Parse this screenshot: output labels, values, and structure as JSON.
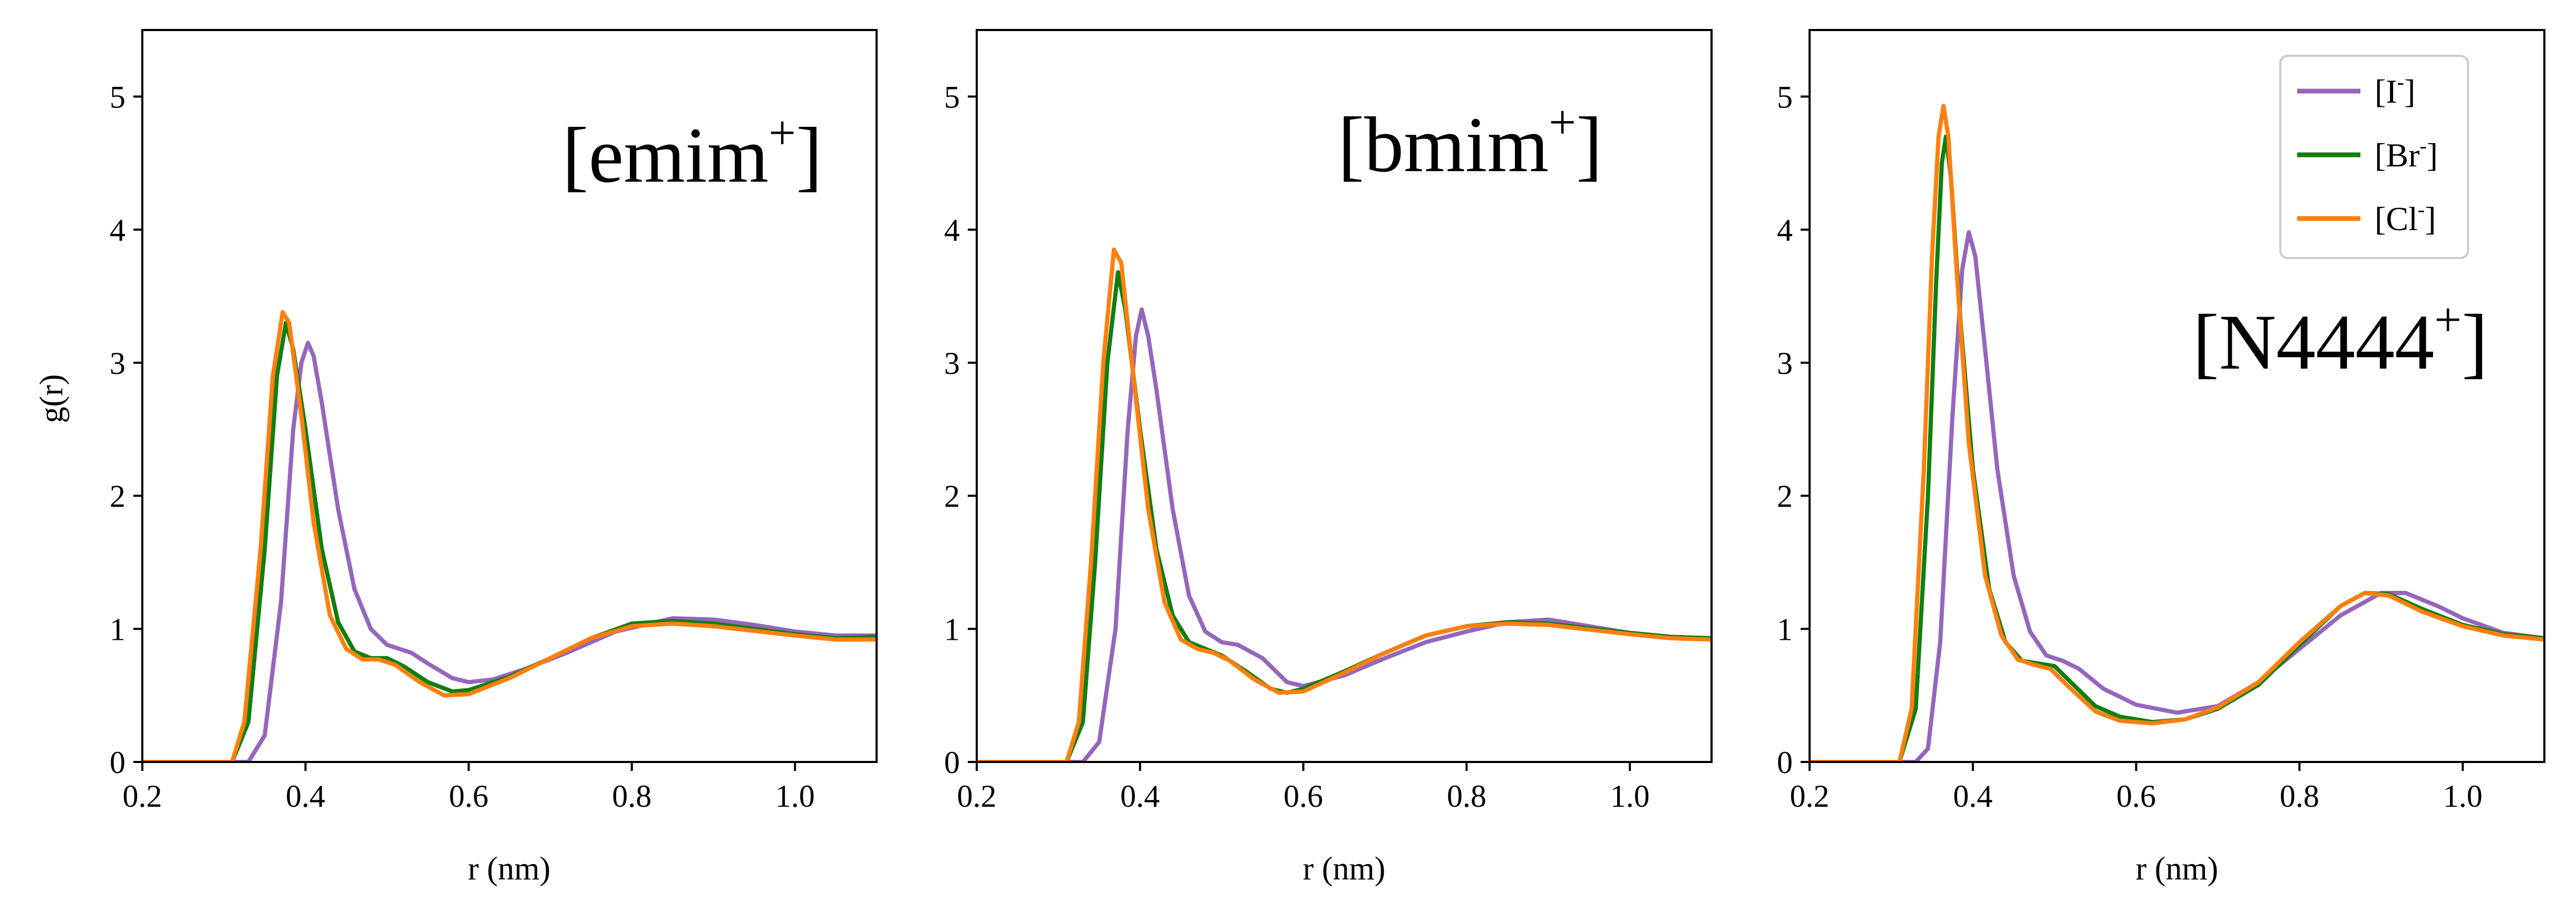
{
  "colors": {
    "I": "#9467bd",
    "Br": "#107f10",
    "Cl": "#ff7f0e"
  },
  "legend": {
    "placement": "upper-right of third panel",
    "entries": [
      {
        "key": "I",
        "label": "[I",
        "sup": "-",
        "close": "]"
      },
      {
        "key": "Br",
        "label": "[Br",
        "sup": "-",
        "close": "]"
      },
      {
        "key": "Cl",
        "label": "[Cl",
        "sup": "-",
        "close": "]"
      }
    ]
  },
  "chart_data": [
    {
      "type": "line",
      "panel_label": {
        "text": "[emim",
        "sup": "+",
        "close": "]"
      },
      "xlabel": "r (nm)",
      "ylabel": "g(r)",
      "xlim": [
        0.2,
        1.1
      ],
      "ylim": [
        0,
        5.5
      ],
      "xticks": [
        "0.2",
        "0.4",
        "0.6",
        "0.8",
        "1.0"
      ],
      "yticks": [
        "0",
        "1",
        "2",
        "3",
        "4",
        "5"
      ],
      "series": [
        {
          "name": "[I-]",
          "key": "I",
          "points": [
            [
              0.2,
              0
            ],
            [
              0.33,
              0
            ],
            [
              0.35,
              0.2
            ],
            [
              0.37,
              1.2
            ],
            [
              0.385,
              2.5
            ],
            [
              0.395,
              3.0
            ],
            [
              0.403,
              3.15
            ],
            [
              0.41,
              3.05
            ],
            [
              0.42,
              2.7
            ],
            [
              0.44,
              1.9
            ],
            [
              0.46,
              1.3
            ],
            [
              0.48,
              1.0
            ],
            [
              0.5,
              0.88
            ],
            [
              0.53,
              0.82
            ],
            [
              0.55,
              0.74
            ],
            [
              0.58,
              0.63
            ],
            [
              0.6,
              0.6
            ],
            [
              0.63,
              0.62
            ],
            [
              0.67,
              0.7
            ],
            [
              0.72,
              0.82
            ],
            [
              0.78,
              0.98
            ],
            [
              0.85,
              1.08
            ],
            [
              0.9,
              1.07
            ],
            [
              0.95,
              1.03
            ],
            [
              1.0,
              0.98
            ],
            [
              1.05,
              0.95
            ],
            [
              1.1,
              0.95
            ]
          ]
        },
        {
          "name": "[Br-]",
          "key": "Br",
          "points": [
            [
              0.2,
              0
            ],
            [
              0.31,
              0
            ],
            [
              0.33,
              0.3
            ],
            [
              0.35,
              1.6
            ],
            [
              0.365,
              2.9
            ],
            [
              0.376,
              3.3
            ],
            [
              0.385,
              3.1
            ],
            [
              0.4,
              2.5
            ],
            [
              0.42,
              1.6
            ],
            [
              0.44,
              1.05
            ],
            [
              0.46,
              0.83
            ],
            [
              0.48,
              0.78
            ],
            [
              0.5,
              0.78
            ],
            [
              0.52,
              0.72
            ],
            [
              0.55,
              0.6
            ],
            [
              0.58,
              0.53
            ],
            [
              0.6,
              0.54
            ],
            [
              0.65,
              0.64
            ],
            [
              0.7,
              0.78
            ],
            [
              0.75,
              0.93
            ],
            [
              0.8,
              1.04
            ],
            [
              0.85,
              1.06
            ],
            [
              0.9,
              1.04
            ],
            [
              1.0,
              0.96
            ],
            [
              1.05,
              0.93
            ],
            [
              1.1,
              0.94
            ]
          ]
        },
        {
          "name": "[Cl-]",
          "key": "Cl",
          "points": [
            [
              0.2,
              0
            ],
            [
              0.31,
              0
            ],
            [
              0.325,
              0.3
            ],
            [
              0.345,
              1.6
            ],
            [
              0.36,
              2.9
            ],
            [
              0.372,
              3.38
            ],
            [
              0.38,
              3.3
            ],
            [
              0.395,
              2.6
            ],
            [
              0.41,
              1.8
            ],
            [
              0.43,
              1.1
            ],
            [
              0.45,
              0.85
            ],
            [
              0.47,
              0.77
            ],
            [
              0.49,
              0.77
            ],
            [
              0.51,
              0.73
            ],
            [
              0.54,
              0.6
            ],
            [
              0.57,
              0.5
            ],
            [
              0.6,
              0.51
            ],
            [
              0.65,
              0.63
            ],
            [
              0.7,
              0.78
            ],
            [
              0.75,
              0.93
            ],
            [
              0.8,
              1.02
            ],
            [
              0.85,
              1.04
            ],
            [
              0.9,
              1.02
            ],
            [
              1.0,
              0.95
            ],
            [
              1.05,
              0.92
            ],
            [
              1.1,
              0.92
            ]
          ]
        }
      ]
    },
    {
      "type": "line",
      "panel_label": {
        "text": "[bmim",
        "sup": "+",
        "close": "]"
      },
      "xlabel": "r (nm)",
      "ylabel": "",
      "xlim": [
        0.2,
        1.1
      ],
      "ylim": [
        0,
        5.5
      ],
      "xticks": [
        "0.2",
        "0.4",
        "0.6",
        "0.8",
        "1.0"
      ],
      "yticks": [
        "0",
        "1",
        "2",
        "3",
        "4",
        "5"
      ],
      "series": [
        {
          "name": "[I-]",
          "key": "I",
          "points": [
            [
              0.2,
              0
            ],
            [
              0.33,
              0
            ],
            [
              0.35,
              0.15
            ],
            [
              0.37,
              1.0
            ],
            [
              0.385,
              2.5
            ],
            [
              0.395,
              3.2
            ],
            [
              0.402,
              3.4
            ],
            [
              0.41,
              3.2
            ],
            [
              0.42,
              2.8
            ],
            [
              0.44,
              1.9
            ],
            [
              0.46,
              1.25
            ],
            [
              0.48,
              0.98
            ],
            [
              0.5,
              0.9
            ],
            [
              0.52,
              0.88
            ],
            [
              0.55,
              0.78
            ],
            [
              0.58,
              0.6
            ],
            [
              0.6,
              0.57
            ],
            [
              0.65,
              0.65
            ],
            [
              0.7,
              0.78
            ],
            [
              0.75,
              0.9
            ],
            [
              0.8,
              0.98
            ],
            [
              0.85,
              1.05
            ],
            [
              0.9,
              1.07
            ],
            [
              0.95,
              1.02
            ],
            [
              1.0,
              0.97
            ],
            [
              1.05,
              0.94
            ],
            [
              1.1,
              0.93
            ]
          ]
        },
        {
          "name": "[Br-]",
          "key": "Br",
          "points": [
            [
              0.2,
              0
            ],
            [
              0.31,
              0
            ],
            [
              0.33,
              0.3
            ],
            [
              0.345,
              1.5
            ],
            [
              0.36,
              3.0
            ],
            [
              0.373,
              3.68
            ],
            [
              0.382,
              3.4
            ],
            [
              0.4,
              2.5
            ],
            [
              0.42,
              1.6
            ],
            [
              0.44,
              1.1
            ],
            [
              0.46,
              0.9
            ],
            [
              0.48,
              0.85
            ],
            [
              0.5,
              0.8
            ],
            [
              0.53,
              0.68
            ],
            [
              0.56,
              0.55
            ],
            [
              0.58,
              0.52
            ],
            [
              0.6,
              0.55
            ],
            [
              0.65,
              0.68
            ],
            [
              0.7,
              0.82
            ],
            [
              0.75,
              0.95
            ],
            [
              0.8,
              1.02
            ],
            [
              0.85,
              1.05
            ],
            [
              0.9,
              1.04
            ],
            [
              1.0,
              0.97
            ],
            [
              1.05,
              0.94
            ],
            [
              1.1,
              0.93
            ]
          ]
        },
        {
          "name": "[Cl-]",
          "key": "Cl",
          "points": [
            [
              0.2,
              0
            ],
            [
              0.31,
              0
            ],
            [
              0.325,
              0.3
            ],
            [
              0.34,
              1.5
            ],
            [
              0.355,
              3.0
            ],
            [
              0.368,
              3.85
            ],
            [
              0.377,
              3.75
            ],
            [
              0.39,
              3.0
            ],
            [
              0.41,
              1.9
            ],
            [
              0.43,
              1.2
            ],
            [
              0.45,
              0.92
            ],
            [
              0.47,
              0.85
            ],
            [
              0.49,
              0.82
            ],
            [
              0.51,
              0.76
            ],
            [
              0.54,
              0.62
            ],
            [
              0.57,
              0.52
            ],
            [
              0.6,
              0.53
            ],
            [
              0.65,
              0.67
            ],
            [
              0.7,
              0.82
            ],
            [
              0.75,
              0.95
            ],
            [
              0.8,
              1.02
            ],
            [
              0.85,
              1.04
            ],
            [
              0.9,
              1.03
            ],
            [
              1.0,
              0.96
            ],
            [
              1.05,
              0.93
            ],
            [
              1.1,
              0.92
            ]
          ]
        }
      ]
    },
    {
      "type": "line",
      "panel_label": {
        "text": "[N4444",
        "sup": "+",
        "close": "]"
      },
      "xlabel": "r (nm)",
      "ylabel": "",
      "xlim": [
        0.2,
        1.1
      ],
      "ylim": [
        0,
        5.5
      ],
      "xticks": [
        "0.2",
        "0.4",
        "0.6",
        "0.8",
        "1.0"
      ],
      "yticks": [
        "0",
        "1",
        "2",
        "3",
        "4",
        "5"
      ],
      "series": [
        {
          "name": "[I-]",
          "key": "I",
          "points": [
            [
              0.2,
              0
            ],
            [
              0.33,
              0
            ],
            [
              0.345,
              0.1
            ],
            [
              0.36,
              0.9
            ],
            [
              0.375,
              2.6
            ],
            [
              0.387,
              3.7
            ],
            [
              0.395,
              3.98
            ],
            [
              0.403,
              3.8
            ],
            [
              0.415,
              3.1
            ],
            [
              0.43,
              2.2
            ],
            [
              0.45,
              1.4
            ],
            [
              0.47,
              0.98
            ],
            [
              0.49,
              0.8
            ],
            [
              0.51,
              0.76
            ],
            [
              0.53,
              0.7
            ],
            [
              0.56,
              0.55
            ],
            [
              0.6,
              0.43
            ],
            [
              0.65,
              0.37
            ],
            [
              0.7,
              0.42
            ],
            [
              0.75,
              0.6
            ],
            [
              0.8,
              0.85
            ],
            [
              0.85,
              1.1
            ],
            [
              0.9,
              1.27
            ],
            [
              0.93,
              1.27
            ],
            [
              0.97,
              1.17
            ],
            [
              1.0,
              1.08
            ],
            [
              1.05,
              0.97
            ],
            [
              1.1,
              0.93
            ]
          ]
        },
        {
          "name": "[Br-]",
          "key": "Br",
          "points": [
            [
              0.2,
              0
            ],
            [
              0.31,
              0
            ],
            [
              0.33,
              0.4
            ],
            [
              0.345,
              2.0
            ],
            [
              0.355,
              3.6
            ],
            [
              0.362,
              4.5
            ],
            [
              0.367,
              4.7
            ],
            [
              0.373,
              4.4
            ],
            [
              0.385,
              3.3
            ],
            [
              0.4,
              2.2
            ],
            [
              0.42,
              1.3
            ],
            [
              0.44,
              0.9
            ],
            [
              0.46,
              0.76
            ],
            [
              0.48,
              0.74
            ],
            [
              0.5,
              0.72
            ],
            [
              0.52,
              0.6
            ],
            [
              0.55,
              0.42
            ],
            [
              0.58,
              0.34
            ],
            [
              0.62,
              0.3
            ],
            [
              0.66,
              0.32
            ],
            [
              0.7,
              0.4
            ],
            [
              0.75,
              0.58
            ],
            [
              0.8,
              0.88
            ],
            [
              0.85,
              1.17
            ],
            [
              0.88,
              1.27
            ],
            [
              0.91,
              1.26
            ],
            [
              0.95,
              1.15
            ],
            [
              1.0,
              1.03
            ],
            [
              1.05,
              0.96
            ],
            [
              1.1,
              0.93
            ]
          ]
        },
        {
          "name": "[Cl-]",
          "key": "Cl",
          "points": [
            [
              0.2,
              0
            ],
            [
              0.31,
              0
            ],
            [
              0.325,
              0.4
            ],
            [
              0.34,
              2.2
            ],
            [
              0.35,
              3.8
            ],
            [
              0.358,
              4.7
            ],
            [
              0.364,
              4.93
            ],
            [
              0.37,
              4.7
            ],
            [
              0.38,
              3.7
            ],
            [
              0.395,
              2.4
            ],
            [
              0.415,
              1.4
            ],
            [
              0.435,
              0.95
            ],
            [
              0.455,
              0.77
            ],
            [
              0.475,
              0.73
            ],
            [
              0.495,
              0.7
            ],
            [
              0.52,
              0.55
            ],
            [
              0.55,
              0.38
            ],
            [
              0.58,
              0.31
            ],
            [
              0.62,
              0.29
            ],
            [
              0.66,
              0.32
            ],
            [
              0.7,
              0.41
            ],
            [
              0.75,
              0.6
            ],
            [
              0.8,
              0.9
            ],
            [
              0.85,
              1.17
            ],
            [
              0.88,
              1.27
            ],
            [
              0.91,
              1.25
            ],
            [
              0.95,
              1.13
            ],
            [
              1.0,
              1.02
            ],
            [
              1.05,
              0.95
            ],
            [
              1.1,
              0.92
            ]
          ]
        }
      ]
    }
  ]
}
